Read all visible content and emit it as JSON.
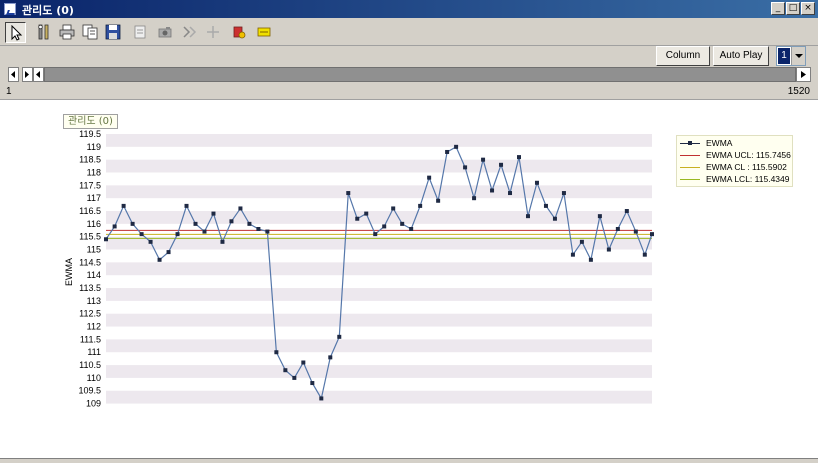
{
  "window": {
    "title": "관리도 (0)",
    "controls": {
      "minimize": "_",
      "maximize": "□",
      "close": "×"
    }
  },
  "toolbar": {
    "icons": [
      "pointer-icon",
      "tools-icon",
      "print-icon",
      "copy-icon",
      "save-icon",
      "export-icon",
      "camera-icon",
      "filter-icon",
      "add-icon",
      "delete-icon",
      "highlight-icon"
    ]
  },
  "controls": {
    "column_label": "Column",
    "autoplay_label": "Auto Play",
    "page_value": "1"
  },
  "navigation": {
    "range_min": "1",
    "range_max": "1520"
  },
  "chart_data": {
    "type": "line",
    "title": "관리도 (0)",
    "xlabel": "",
    "ylabel": "EWMA",
    "ylim": [
      108.75,
      119.5
    ],
    "yticks": [
      "109",
      "109.5",
      "110",
      "110.5",
      "111",
      "111.5",
      "112",
      "112.5",
      "113",
      "113.5",
      "114",
      "114.5",
      "115",
      "115.5",
      "116",
      "116.5",
      "117",
      "117.5",
      "118",
      "118.5",
      "119",
      "119.5"
    ],
    "xlim": [
      1,
      1520
    ],
    "grid": "horizontal bands",
    "legend_position": "top-right",
    "series": [
      {
        "name": "EWMA",
        "color": "#1f2a44",
        "marker": "square",
        "x": [
          1,
          25,
          50,
          75,
          100,
          125,
          150,
          175,
          200,
          225,
          250,
          275,
          300,
          325,
          350,
          375,
          400,
          425,
          450,
          475,
          500,
          525,
          550,
          575,
          600,
          625,
          650,
          675,
          700,
          725,
          750,
          775,
          800,
          825,
          850,
          875,
          900,
          925,
          950,
          975,
          1000,
          1025,
          1050,
          1075,
          1100,
          1125,
          1150,
          1175,
          1200,
          1225,
          1250,
          1275,
          1300,
          1325,
          1350,
          1375,
          1400,
          1425,
          1450,
          1475,
          1500,
          1520
        ],
        "values": [
          115.4,
          115.9,
          116.7,
          116.0,
          115.6,
          115.3,
          114.6,
          114.9,
          115.6,
          116.7,
          116.0,
          115.7,
          116.4,
          115.3,
          116.1,
          116.6,
          116.0,
          115.8,
          115.7,
          111.0,
          110.3,
          110.0,
          110.6,
          109.8,
          109.2,
          110.8,
          111.6,
          117.2,
          116.2,
          116.4,
          115.6,
          115.9,
          116.6,
          116.0,
          115.8,
          116.7,
          117.8,
          116.9,
          118.8,
          119.0,
          118.2,
          117.0,
          118.5,
          117.3,
          118.3,
          117.2,
          118.6,
          116.3,
          117.6,
          116.7,
          116.2,
          117.2,
          114.8,
          115.3,
          114.6,
          116.3,
          115.0,
          115.8,
          116.5,
          115.7,
          114.8,
          115.6
        ]
      },
      {
        "name": "EWMA UCL: 115.7456",
        "color": "#c03030",
        "values": [
          115.7456
        ]
      },
      {
        "name": "EWMA CL : 115.5902",
        "color": "#c8b020",
        "values": [
          115.5902
        ]
      },
      {
        "name": "EWMA LCL: 115.4349",
        "color": "#9ab820",
        "values": [
          115.4349
        ]
      }
    ]
  }
}
